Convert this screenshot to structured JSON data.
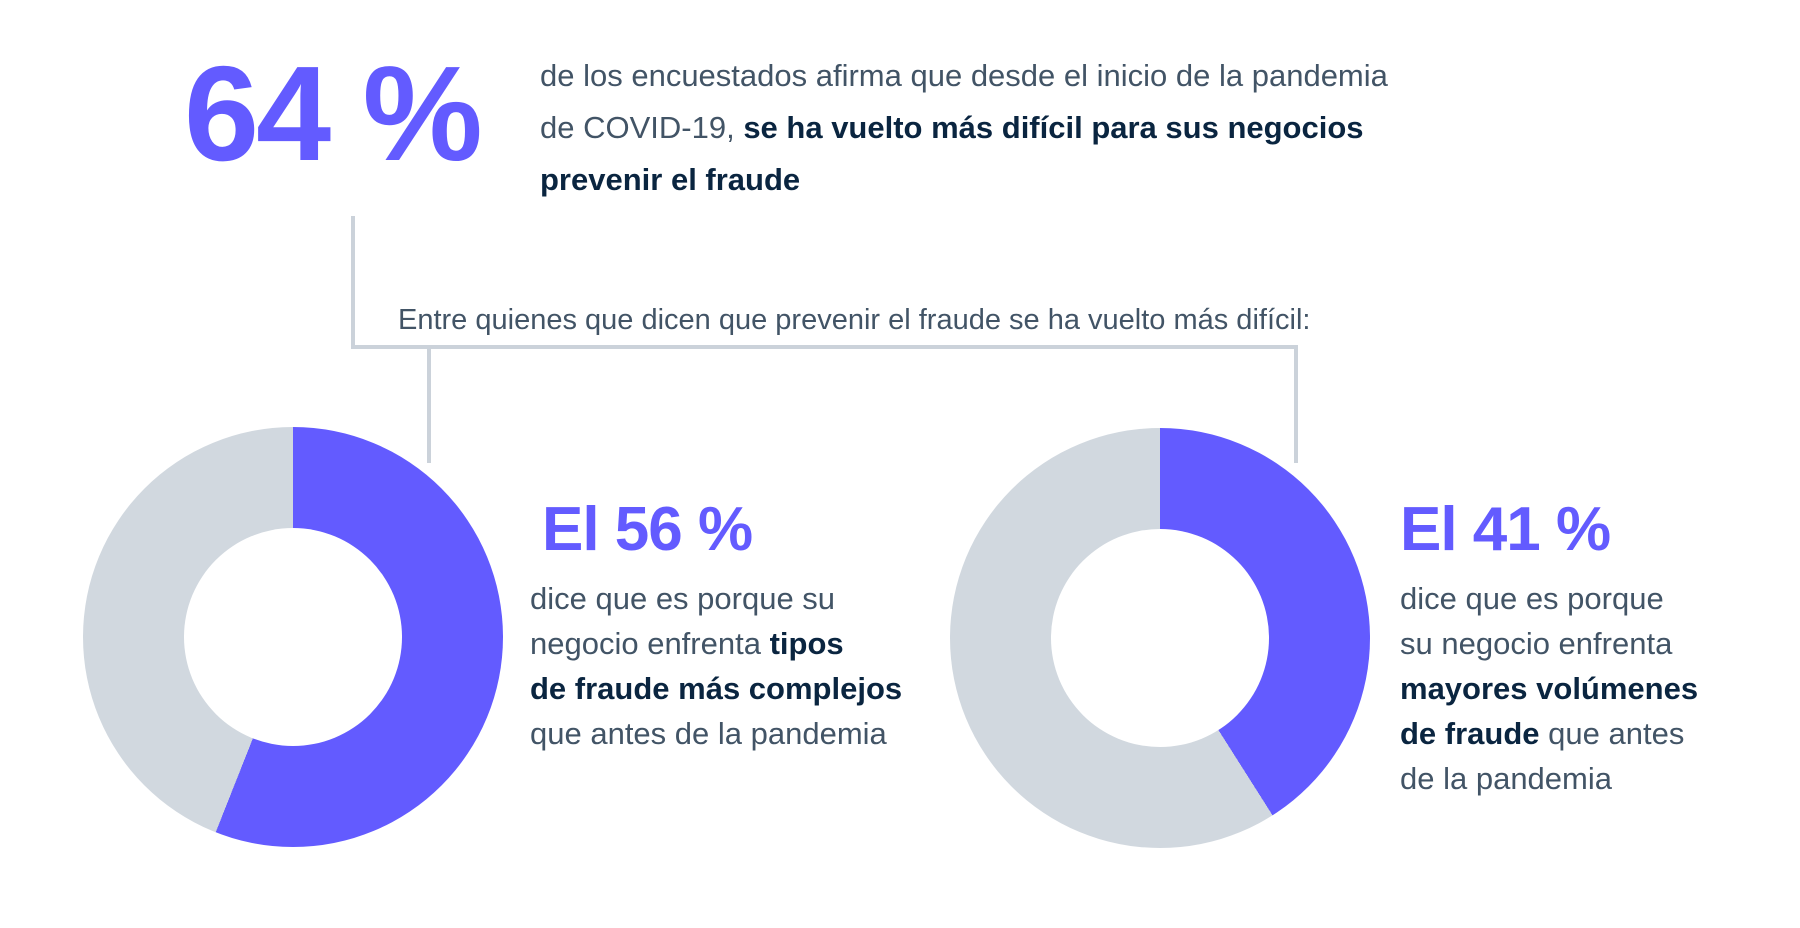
{
  "page": {
    "background": "#FFFFFF",
    "language": "es"
  },
  "colors": {
    "purple": "#635BFF",
    "donut_gray": "#D1D8DF",
    "navy_bold_text": "#0A2540",
    "slate_text": "#425466",
    "connector_line": "#CBD2DA"
  },
  "hero": {
    "stat": "64 %",
    "line1": "de los encuestados afirma que desde el inicio de la pandemia",
    "line2_regular": "de COVID-19, ",
    "line2_bold": "se ha vuelto más difícil para sus negocios",
    "line3_bold": "prevenir el fraude"
  },
  "connector": {
    "label": "Entre quienes que dicen que prevenir el fraude se ha vuelto más difícil:"
  },
  "left_card": {
    "stat": "El 56 %",
    "line1": "dice que es porque su",
    "line2_regular": "negocio enfrenta ",
    "line2_bold": "tipos",
    "line3_bold": "de fraude más complejos",
    "line4": "que antes de la pandemia"
  },
  "right_card": {
    "stat": "El 41 %",
    "line1": "dice que es porque",
    "line2": "su negocio enfrenta",
    "line3_bold": "mayores volúmenes",
    "line4_bold": "de fraude",
    "line4_regular": " que antes",
    "line5": "de la pandemia"
  },
  "chart_data": [
    {
      "type": "pie",
      "variant": "donut",
      "title": "El 56 %",
      "start": "top",
      "direction": "clockwise",
      "slices": [
        {
          "label": "El 56 % — tipos de fraude más complejos que antes de la pandemia",
          "value": 56,
          "color": "#635BFF"
        },
        {
          "label": "",
          "value": 44,
          "color": "#D1D8DF"
        }
      ],
      "legend": "none",
      "hole_ratio": 0.52
    },
    {
      "type": "pie",
      "variant": "donut",
      "title": "El 41 %",
      "start": "top",
      "direction": "clockwise",
      "slices": [
        {
          "label": "El 41 % — mayores volúmenes de fraude que antes de la pandemia",
          "value": 41,
          "color": "#635BFF"
        },
        {
          "label": "",
          "value": 59,
          "color": "#D1D8DF"
        }
      ],
      "legend": "none",
      "hole_ratio": 0.52
    }
  ]
}
